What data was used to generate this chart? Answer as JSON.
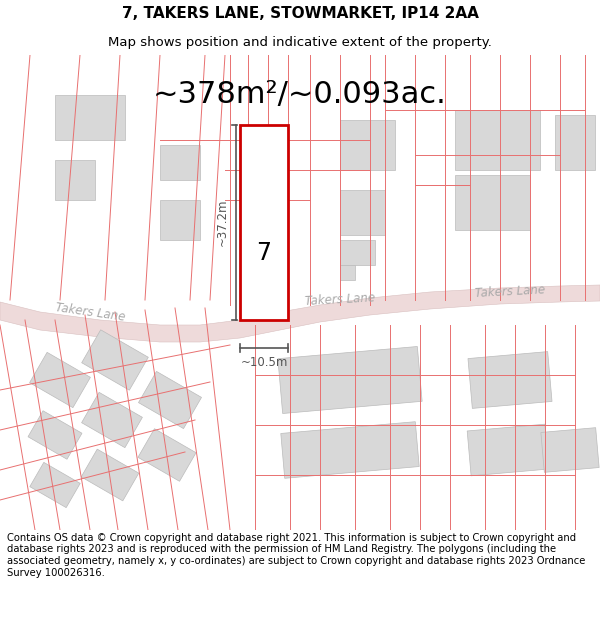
{
  "title": "7, TAKERS LANE, STOWMARKET, IP14 2AA",
  "subtitle": "Map shows position and indicative extent of the property.",
  "area_text": "~378m²/~0.093ac.",
  "label_number": "7",
  "dim_width": "~10.5m",
  "dim_height": "~37.2m",
  "road_label_left": "Takers Lane",
  "road_label_right": "Takers Lane",
  "road_label_center": "Takers Lane",
  "footer": "Contains OS data © Crown copyright and database right 2021. This information is subject to Crown copyright and database rights 2023 and is reproduced with the permission of HM Land Registry. The polygons (including the associated geometry, namely x, y co-ordinates) are subject to Crown copyright and database rights 2023 Ordnance Survey 100026316.",
  "bg_color": "#ffffff",
  "map_bg": "#ffffff",
  "road_color": "#e8d8d8",
  "building_fill": "#d8d8d8",
  "building_edge": "#bbbbbb",
  "plot_fill": "#ffffff",
  "plot_edge": "#cc0000",
  "line_color": "#555555",
  "cadastral_color": "#e87070",
  "title_fontsize": 11,
  "subtitle_fontsize": 9.5,
  "area_fontsize": 22,
  "footer_fontsize": 7.2
}
